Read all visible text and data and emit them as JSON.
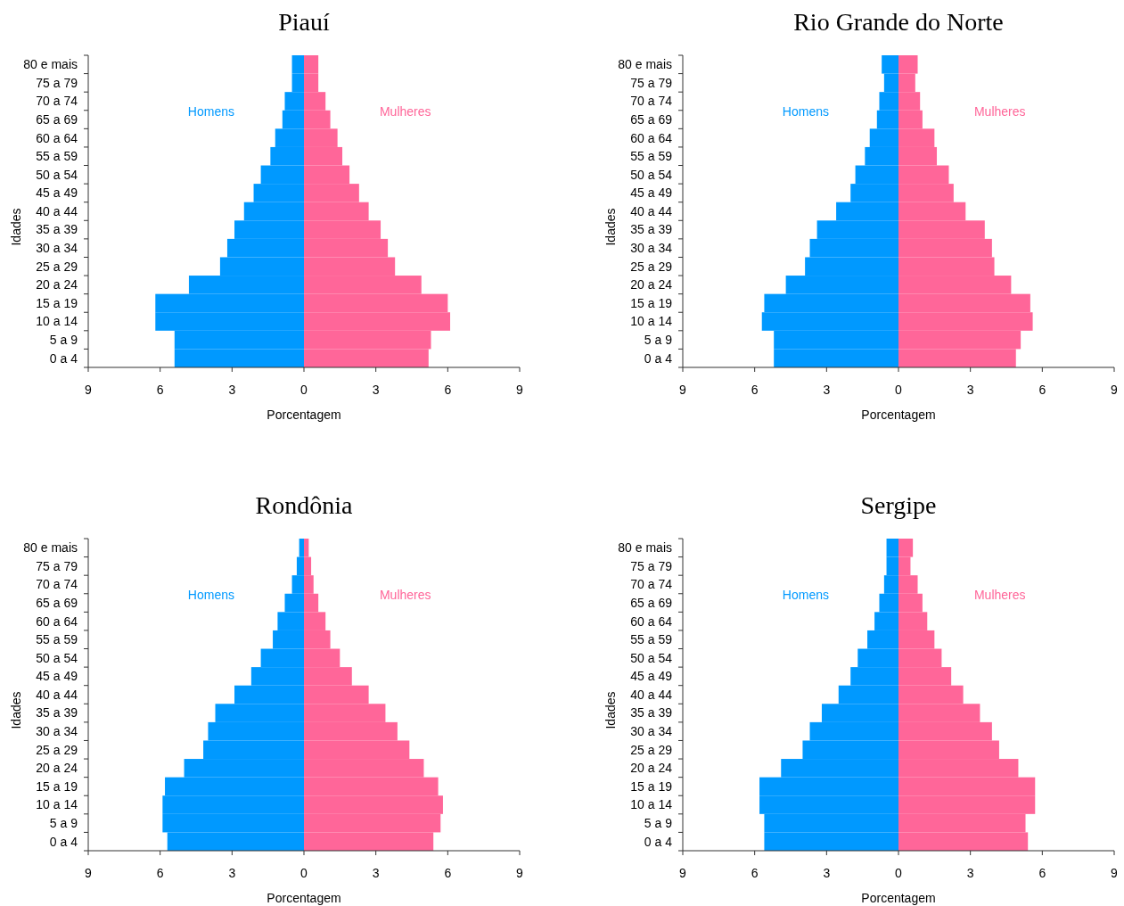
{
  "chart_data": [
    {
      "type": "bar",
      "orientation": "horizontal",
      "stacked": true,
      "title": "Piauí",
      "xlabel": "Porcentagem",
      "ylabel": "Idades",
      "categories": [
        "80 e mais",
        "75 a 79",
        "70 a 74",
        "65 a 69",
        "60 a 64",
        "55 a 59",
        "50 a 54",
        "45 a 49",
        "40 a 44",
        "35 a 39",
        "30 a 34",
        "25 a 29",
        "20 a 24",
        "15 a 19",
        "10 a 14",
        "5 a 9",
        "0 a 4"
      ],
      "xlim": [
        -9,
        9
      ],
      "xticks": [
        {
          "value": -9,
          "label": "9"
        },
        {
          "value": -6,
          "label": "6"
        },
        {
          "value": -3,
          "label": "3"
        },
        0,
        3,
        6,
        9
      ],
      "grid": false,
      "legend": false,
      "series": [
        {
          "name": "Homens",
          "color": "#0099ff",
          "values": [
            -0.5,
            -0.5,
            -0.8,
            -0.9,
            -1.2,
            -1.4,
            -1.8,
            -2.1,
            -2.5,
            -2.9,
            -3.2,
            -3.5,
            -4.8,
            -6.2,
            -6.2,
            -5.4,
            -5.4
          ]
        },
        {
          "name": "Mulheres",
          "color": "#ff6699",
          "values": [
            0.6,
            0.6,
            0.9,
            1.1,
            1.4,
            1.6,
            1.9,
            2.3,
            2.7,
            3.2,
            3.5,
            3.8,
            4.9,
            6.0,
            6.1,
            5.3,
            5.2
          ]
        }
      ]
    },
    {
      "type": "bar",
      "orientation": "horizontal",
      "stacked": true,
      "title": "Rio Grande do Norte",
      "xlabel": "Porcentagem",
      "ylabel": "Idades",
      "categories": [
        "80 e mais",
        "75 a 79",
        "70 a 74",
        "65 a 69",
        "60 a 64",
        "55 a 59",
        "50 a 54",
        "45 a 49",
        "40 a 44",
        "35 a 39",
        "30 a 34",
        "25 a 29",
        "20 a 24",
        "15 a 19",
        "10 a 14",
        "5 a 9",
        "0 a 4"
      ],
      "xlim": [
        -9,
        9
      ],
      "xticks": [
        {
          "value": -9,
          "label": "9"
        },
        {
          "value": -6,
          "label": "6"
        },
        {
          "value": -3,
          "label": "3"
        },
        0,
        3,
        6,
        9
      ],
      "grid": false,
      "legend": false,
      "series": [
        {
          "name": "Homens",
          "color": "#0099ff",
          "values": [
            -0.7,
            -0.6,
            -0.8,
            -0.9,
            -1.2,
            -1.4,
            -1.8,
            -2.0,
            -2.6,
            -3.4,
            -3.7,
            -3.9,
            -4.7,
            -5.6,
            -5.7,
            -5.2,
            -5.2
          ]
        },
        {
          "name": "Mulheres",
          "color": "#ff6699",
          "values": [
            0.8,
            0.7,
            0.9,
            1.0,
            1.5,
            1.6,
            2.1,
            2.3,
            2.8,
            3.6,
            3.9,
            4.0,
            4.7,
            5.5,
            5.6,
            5.1,
            4.9
          ]
        }
      ]
    },
    {
      "type": "bar",
      "orientation": "horizontal",
      "stacked": true,
      "title": "Rondônia",
      "xlabel": "Porcentagem",
      "ylabel": "Idades",
      "categories": [
        "80 e mais",
        "75 a 79",
        "70 a 74",
        "65 a 69",
        "60 a 64",
        "55 a 59",
        "50 a 54",
        "45 a 49",
        "40 a 44",
        "35 a 39",
        "30 a 34",
        "25 a 29",
        "20 a 24",
        "15 a 19",
        "10 a 14",
        "5 a 9",
        "0 a 4"
      ],
      "xlim": [
        -9,
        9
      ],
      "xticks": [
        {
          "value": -9,
          "label": "9"
        },
        {
          "value": -6,
          "label": "6"
        },
        {
          "value": -3,
          "label": "3"
        },
        0,
        3,
        6,
        9
      ],
      "grid": false,
      "legend": false,
      "series": [
        {
          "name": "Homens",
          "color": "#0099ff",
          "values": [
            -0.2,
            -0.3,
            -0.5,
            -0.8,
            -1.1,
            -1.3,
            -1.8,
            -2.2,
            -2.9,
            -3.7,
            -4.0,
            -4.2,
            -5.0,
            -5.8,
            -5.9,
            -5.9,
            -5.7
          ]
        },
        {
          "name": "Mulheres",
          "color": "#ff6699",
          "values": [
            0.2,
            0.3,
            0.4,
            0.6,
            0.9,
            1.1,
            1.5,
            2.0,
            2.7,
            3.4,
            3.9,
            4.4,
            5.0,
            5.6,
            5.8,
            5.7,
            5.4
          ]
        }
      ]
    },
    {
      "type": "bar",
      "orientation": "horizontal",
      "stacked": true,
      "title": "Sergipe",
      "xlabel": "Porcentagem",
      "ylabel": "Idades",
      "categories": [
        "80 e mais",
        "75 a 79",
        "70 a 74",
        "65 a 69",
        "60 a 64",
        "55 a 59",
        "50 a 54",
        "45 a 49",
        "40 a 44",
        "35 a 39",
        "30 a 34",
        "25 a 29",
        "20 a 24",
        "15 a 19",
        "10 a 14",
        "5 a 9",
        "0 a 4"
      ],
      "xlim": [
        -9,
        9
      ],
      "xticks": [
        {
          "value": -9,
          "label": "9"
        },
        {
          "value": -6,
          "label": "6"
        },
        {
          "value": -3,
          "label": "3"
        },
        0,
        3,
        6,
        9
      ],
      "grid": false,
      "legend": false,
      "series": [
        {
          "name": "Homens",
          "color": "#0099ff",
          "values": [
            -0.5,
            -0.5,
            -0.6,
            -0.8,
            -1.0,
            -1.3,
            -1.7,
            -2.0,
            -2.5,
            -3.2,
            -3.7,
            -4.0,
            -4.9,
            -5.8,
            -5.8,
            -5.6,
            -5.6
          ]
        },
        {
          "name": "Mulheres",
          "color": "#ff6699",
          "values": [
            0.6,
            0.5,
            0.8,
            1.0,
            1.2,
            1.5,
            1.8,
            2.2,
            2.7,
            3.4,
            3.9,
            4.2,
            5.0,
            5.7,
            5.7,
            5.3,
            5.4
          ]
        }
      ]
    }
  ]
}
